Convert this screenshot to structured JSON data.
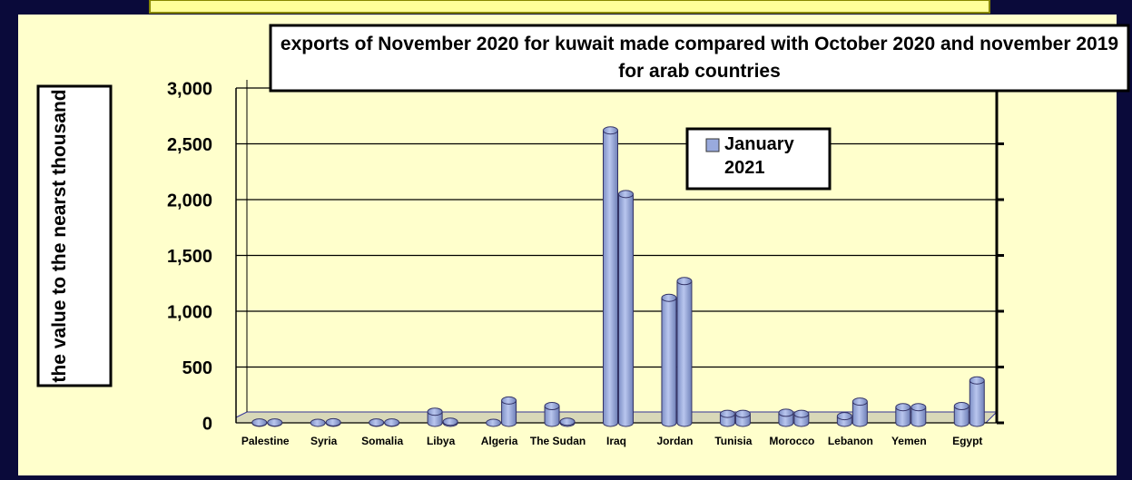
{
  "chart_data": {
    "type": "bar",
    "title": "exports of November 2020 for kuwait made compared with October 2020 and november 2019 for arab countries",
    "y_axis_label": "the value to the nearst thousand",
    "categories": [
      "Palestine",
      "Syria",
      "Somalia",
      "Libya",
      "Algeria",
      "The Sudan",
      "Iraq",
      "Jordan",
      "Tunisia",
      "Morocco",
      "Lebanon",
      "Yemen",
      "Egypt"
    ],
    "series": [
      {
        "name": "January 2021",
        "color": "#99aadd",
        "values": [
          3,
          0,
          3,
          100,
          0,
          150,
          2620,
          1120,
          80,
          90,
          60,
          140,
          150
        ]
      },
      {
        "color": "#99aadd",
        "values": [
          3,
          5,
          3,
          10,
          200,
          10,
          2050,
          1270,
          80,
          80,
          190,
          140,
          380
        ]
      }
    ],
    "ylim": [
      0,
      3000
    ],
    "yticks": [
      0,
      500,
      {
        "value": 1000,
        "label": "1,000"
      },
      {
        "value": 1500,
        "label": "1,500"
      },
      {
        "value": 2000,
        "label": "2,000"
      },
      {
        "value": 2500,
        "label": "2,500"
      },
      {
        "value": 3000,
        "label": "3,000"
      }
    ],
    "grid": true
  }
}
